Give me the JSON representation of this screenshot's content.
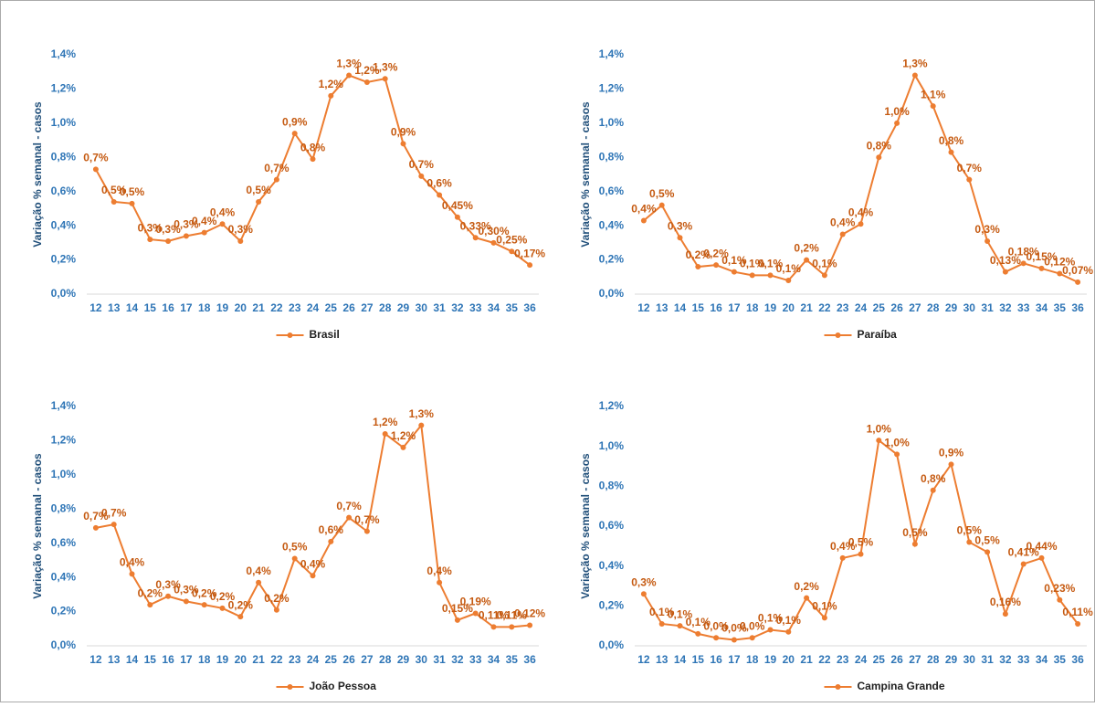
{
  "chart_data": [
    {
      "type": "line",
      "categories": [
        "12",
        "13",
        "14",
        "15",
        "16",
        "17",
        "18",
        "19",
        "20",
        "21",
        "22",
        "23",
        "24",
        "25",
        "26",
        "27",
        "28",
        "29",
        "30",
        "31",
        "32",
        "33",
        "34",
        "35",
        "36"
      ],
      "y_label": "Variação % semanal - casos",
      "ylim": [
        0,
        1.4
      ],
      "yticks": [
        {
          "value": 0,
          "label": "0,0%"
        },
        {
          "value": 0.2,
          "label": "0,2%"
        },
        {
          "value": 0.4,
          "label": "0,4%"
        },
        {
          "value": 0.6,
          "label": "0,6%"
        },
        {
          "value": 0.8,
          "label": "0,8%"
        },
        {
          "value": 1.0,
          "label": "1,0%"
        },
        {
          "value": 1.2,
          "label": "1,2%"
        },
        {
          "value": 1.4,
          "label": "1,4%"
        }
      ],
      "grid": false,
      "legend": "bottom",
      "series": [
        {
          "name": "Brasil",
          "color": "#ED7D31",
          "values": [
            0.73,
            0.54,
            0.53,
            0.32,
            0.31,
            0.34,
            0.36,
            0.41,
            0.31,
            0.54,
            0.67,
            0.94,
            0.79,
            1.16,
            1.28,
            1.24,
            1.26,
            0.88,
            0.69,
            0.58,
            0.45,
            0.33,
            0.3,
            0.25,
            0.17
          ],
          "value_labels": [
            "0,7%",
            "0,5%",
            "0,5%",
            "0,3%",
            "0,3%",
            "0,3%",
            "0,4%",
            "0,4%",
            "0,3%",
            "0,5%",
            "0,7%",
            "0,9%",
            "0,8%",
            "1,2%",
            "1,3%",
            "1,2%",
            "1,3%",
            "0,9%",
            "0,7%",
            "0,6%",
            "0,45%",
            "0,33%",
            "0,30%",
            "0,25%",
            "0,17%"
          ]
        }
      ]
    },
    {
      "type": "line",
      "categories": [
        "12",
        "13",
        "14",
        "15",
        "16",
        "17",
        "18",
        "19",
        "20",
        "21",
        "22",
        "23",
        "24",
        "25",
        "26",
        "27",
        "28",
        "29",
        "30",
        "31",
        "32",
        "33",
        "34",
        "35",
        "36"
      ],
      "y_label": "Variação % semanal - casos",
      "ylim": [
        0,
        1.4
      ],
      "yticks": [
        {
          "value": 0,
          "label": "0,0%"
        },
        {
          "value": 0.2,
          "label": "0,2%"
        },
        {
          "value": 0.4,
          "label": "0,4%"
        },
        {
          "value": 0.6,
          "label": "0,6%"
        },
        {
          "value": 0.8,
          "label": "0,8%"
        },
        {
          "value": 1.0,
          "label": "1,0%"
        },
        {
          "value": 1.2,
          "label": "1,2%"
        },
        {
          "value": 1.4,
          "label": "1,4%"
        }
      ],
      "grid": false,
      "legend": "bottom",
      "series": [
        {
          "name": "Paraíba",
          "color": "#ED7D31",
          "values": [
            0.43,
            0.52,
            0.33,
            0.16,
            0.17,
            0.13,
            0.11,
            0.11,
            0.08,
            0.2,
            0.11,
            0.35,
            0.41,
            0.8,
            1.0,
            1.28,
            1.1,
            0.83,
            0.67,
            0.31,
            0.13,
            0.18,
            0.15,
            0.12,
            0.07
          ],
          "value_labels": [
            "0,4%",
            "0,5%",
            "0,3%",
            "0,2%",
            "0,2%",
            "0,1%",
            "0,1%",
            "0,1%",
            "0,1%",
            "0,2%",
            "0,1%",
            "0,4%",
            "0,4%",
            "0,8%",
            "1,0%",
            "1,3%",
            "1,1%",
            "0,8%",
            "0,7%",
            "0,3%",
            "0,13%",
            "0,18%",
            "0,15%",
            "0,12%",
            "0,07%"
          ]
        }
      ]
    },
    {
      "type": "line",
      "categories": [
        "12",
        "13",
        "14",
        "15",
        "16",
        "17",
        "18",
        "19",
        "20",
        "21",
        "22",
        "23",
        "24",
        "25",
        "26",
        "27",
        "28",
        "29",
        "30",
        "31",
        "32",
        "33",
        "34",
        "35",
        "36"
      ],
      "y_label": "Variação % semanal - casos",
      "ylim": [
        0,
        1.4
      ],
      "yticks": [
        {
          "value": 0,
          "label": "0,0%"
        },
        {
          "value": 0.2,
          "label": "0,2%"
        },
        {
          "value": 0.4,
          "label": "0,4%"
        },
        {
          "value": 0.6,
          "label": "0,6%"
        },
        {
          "value": 0.8,
          "label": "0,8%"
        },
        {
          "value": 1.0,
          "label": "1,0%"
        },
        {
          "value": 1.2,
          "label": "1,2%"
        },
        {
          "value": 1.4,
          "label": "1,4%"
        }
      ],
      "grid": false,
      "legend": "bottom",
      "series": [
        {
          "name": "João Pessoa",
          "color": "#ED7D31",
          "values": [
            0.69,
            0.71,
            0.42,
            0.24,
            0.29,
            0.26,
            0.24,
            0.22,
            0.17,
            0.37,
            0.21,
            0.51,
            0.41,
            0.61,
            0.75,
            0.67,
            1.24,
            1.16,
            1.29,
            0.37,
            0.15,
            0.19,
            0.11,
            0.11,
            0.12
          ],
          "value_labels": [
            "0,7%",
            "0,7%",
            "0,4%",
            "0,2%",
            "0,3%",
            "0,3%",
            "0,2%",
            "0,2%",
            "0,2%",
            "0,4%",
            "0,2%",
            "0,5%",
            "0,4%",
            "0,6%",
            "0,7%",
            "0,7%",
            "1,2%",
            "1,2%",
            "1,3%",
            "0,4%",
            "0,15%",
            "0,19%",
            "0,11%",
            "0,11%",
            "0,12%"
          ]
        }
      ]
    },
    {
      "type": "line",
      "categories": [
        "12",
        "13",
        "14",
        "15",
        "16",
        "17",
        "18",
        "19",
        "20",
        "21",
        "22",
        "23",
        "24",
        "25",
        "26",
        "27",
        "28",
        "29",
        "30",
        "31",
        "32",
        "33",
        "34",
        "35",
        "36"
      ],
      "y_label": "Variação % semanal - casos",
      "ylim": [
        0,
        1.2
      ],
      "yticks": [
        {
          "value": 0,
          "label": "0,0%"
        },
        {
          "value": 0.2,
          "label": "0,2%"
        },
        {
          "value": 0.4,
          "label": "0,4%"
        },
        {
          "value": 0.6,
          "label": "0,6%"
        },
        {
          "value": 0.8,
          "label": "0,8%"
        },
        {
          "value": 1.0,
          "label": "1,0%"
        },
        {
          "value": 1.2,
          "label": "1,2%"
        }
      ],
      "grid": false,
      "legend": "bottom",
      "series": [
        {
          "name": "Campina Grande",
          "color": "#ED7D31",
          "values": [
            0.26,
            0.11,
            0.1,
            0.06,
            0.04,
            0.03,
            0.04,
            0.08,
            0.07,
            0.24,
            0.14,
            0.44,
            0.46,
            1.03,
            0.96,
            0.51,
            0.78,
            0.91,
            0.52,
            0.47,
            0.16,
            0.41,
            0.44,
            0.23,
            0.11
          ],
          "value_labels": [
            "0,3%",
            "0,1%",
            "0,1%",
            "0,1%",
            "0,0%",
            "0,0%",
            "0,0%",
            "0,1%",
            "0,1%",
            "0,2%",
            "0,1%",
            "0,4%",
            "0,5%",
            "1,0%",
            "1,0%",
            "0,5%",
            "0,8%",
            "0,9%",
            "0,5%",
            "0,5%",
            "0,16%",
            "0,41%",
            "0,44%",
            "0,23%",
            "0,11%"
          ]
        }
      ]
    }
  ]
}
